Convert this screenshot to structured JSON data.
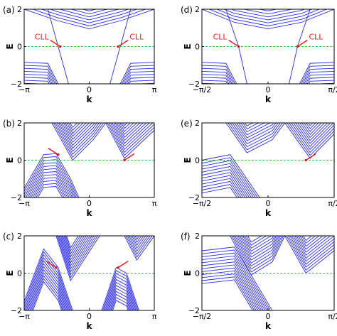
{
  "figure": {
    "colors": {
      "bands": "#2b2be6",
      "fermi_line": "#2ecc2e",
      "annotation": "#e02020"
    }
  },
  "chart_data": [
    {
      "panel": "(a)",
      "type": "line",
      "xlabel": "k",
      "ylabel": "E",
      "xlim": [
        -3.1416,
        3.1416
      ],
      "ylim": [
        -2,
        2
      ],
      "xticks": [
        "−π",
        "0",
        "π"
      ],
      "yticks": [
        "−2",
        "0",
        "2"
      ],
      "annotations": [
        {
          "text": "CLL",
          "k": -1.4,
          "E": 0
        },
        {
          "text": "CLL",
          "k": 1.4,
          "E": 0
        }
      ],
      "series": [
        {
          "role": "conduction band bottom",
          "x": [
            -3.14,
            -1.57,
            0,
            1.57,
            3.14
          ],
          "y": [
            2.0,
            1.4,
            0.95,
            1.4,
            2.0
          ]
        },
        {
          "role": "valence band top",
          "x": [
            -3.14,
            -2.0,
            -1.5
          ],
          "y": [
            -0.85,
            -0.9,
            -2.0
          ]
        },
        {
          "role": "valence band top",
          "x": [
            1.5,
            2.0,
            3.14
          ],
          "y": [
            -2.0,
            -0.9,
            -0.85
          ]
        },
        {
          "role": "chiral Landau level",
          "x": [
            -2.0,
            -1.5,
            -1.0
          ],
          "y": [
            2.0,
            0,
            -2.0
          ]
        },
        {
          "role": "chiral Landau level",
          "x": [
            1.0,
            1.5,
            2.0
          ],
          "y": [
            -2.0,
            0,
            2.0
          ]
        }
      ]
    },
    {
      "panel": "(d)",
      "type": "line",
      "xlabel": "k",
      "ylabel": "E",
      "xlim": [
        -1.5708,
        1.5708
      ],
      "ylim": [
        -2,
        2
      ],
      "xticks": [
        "−π/2",
        "0",
        "π/2"
      ],
      "yticks": [
        "−2",
        "0",
        "2"
      ],
      "annotations": [
        {
          "text": "CLL",
          "k": -0.7,
          "E": 0
        },
        {
          "text": "CLL",
          "k": 0.7,
          "E": 0
        }
      ],
      "series": [
        {
          "role": "conduction band bottom",
          "x": [
            -1.57,
            -0.8,
            0,
            0.8,
            1.57
          ],
          "y": [
            2.0,
            1.3,
            0.95,
            1.3,
            2.0
          ]
        },
        {
          "role": "valence band top",
          "x": [
            -1.57,
            -1.0,
            -0.75
          ],
          "y": [
            -0.85,
            -0.9,
            -2.0
          ]
        },
        {
          "role": "valence band top",
          "x": [
            0.75,
            1.0,
            1.57
          ],
          "y": [
            -2.0,
            -0.9,
            -0.85
          ]
        },
        {
          "role": "chiral Landau level",
          "x": [
            -1.0,
            -0.7,
            -0.5
          ],
          "y": [
            2.0,
            0,
            -2.0
          ]
        },
        {
          "role": "chiral Landau level",
          "x": [
            0.5,
            0.7,
            1.0
          ],
          "y": [
            -2.0,
            0,
            2.0
          ]
        }
      ]
    },
    {
      "panel": "(b)",
      "type": "line",
      "xlabel": "k",
      "ylabel": "E",
      "xlim": [
        -3.1416,
        3.1416
      ],
      "ylim": [
        -2,
        2
      ],
      "xticks": [
        "−π",
        "0",
        "π"
      ],
      "yticks": [
        "−2",
        "0",
        "2"
      ],
      "annotations": [
        {
          "text": "",
          "k": -1.5,
          "E": 0.3
        },
        {
          "text": "",
          "k": 1.7,
          "E": 0
        }
      ],
      "series": [
        {
          "role": "valence band top",
          "x": [
            -3.14,
            -2.2,
            -1.6,
            -0.9,
            -0.5
          ],
          "y": [
            -1.5,
            0.3,
            0.35,
            -1.0,
            -2.0
          ]
        },
        {
          "role": "conduction band bottom",
          "x": [
            -1.8,
            -0.8,
            0.2,
            0.8
          ],
          "y": [
            2.0,
            0.0,
            1.1,
            2.0
          ]
        },
        {
          "role": "conduction band bottom",
          "x": [
            0.8,
            1.7,
            3.14
          ],
          "y": [
            2.0,
            0.1,
            1.6
          ]
        }
      ]
    },
    {
      "panel": "(e)",
      "type": "line",
      "xlabel": "k",
      "ylabel": "E",
      "xlim": [
        -1.5708,
        1.5708
      ],
      "ylim": [
        -2,
        2
      ],
      "xticks": [
        "−π/2",
        "0",
        "π/2"
      ],
      "yticks": [
        "−2",
        "0",
        "2"
      ],
      "annotations": [
        {
          "text": "",
          "k": 0.9,
          "E": 0
        }
      ],
      "series": [
        {
          "role": "valence band top",
          "x": [
            -1.57,
            -0.9,
            -0.2
          ],
          "y": [
            0.0,
            0.3,
            -2.0
          ]
        },
        {
          "role": "conduction band bottom",
          "x": [
            -1.0,
            -0.5,
            0.1,
            0.4
          ],
          "y": [
            2.0,
            0.4,
            1.1,
            2.0
          ]
        },
        {
          "role": "conduction band bottom",
          "x": [
            0.4,
            1.0,
            1.57
          ],
          "y": [
            2.0,
            0.1,
            1.4
          ]
        }
      ]
    },
    {
      "panel": "(c)",
      "type": "line",
      "xlabel": "k",
      "ylabel": "E",
      "xlim": [
        -3.1416,
        3.1416
      ],
      "ylim": [
        -2,
        2
      ],
      "xticks": [
        "−π",
        "0",
        "π"
      ],
      "yticks": [
        "−2",
        "0",
        "2"
      ],
      "annotations": [
        {
          "text": "",
          "k": -1.6,
          "E": 0.3
        },
        {
          "text": "",
          "k": 1.4,
          "E": 0.3
        }
      ],
      "series": [
        {
          "role": "valence band top",
          "x": [
            -3.14,
            -2.2,
            -1.5,
            -0.8
          ],
          "y": [
            -1.5,
            1.3,
            0.3,
            -2.0
          ]
        },
        {
          "role": "conduction band bottom",
          "x": [
            -1.6,
            -0.9,
            -0.2,
            0.5
          ],
          "y": [
            2.0,
            -0.4,
            0.8,
            2.0
          ]
        },
        {
          "role": "valence band top",
          "x": [
            0.6,
            1.3,
            1.8,
            2.4
          ],
          "y": [
            -2.0,
            0.3,
            0.0,
            -2.0
          ]
        },
        {
          "role": "conduction band bottom",
          "x": [
            1.7,
            2.3,
            3.14
          ],
          "y": [
            2.0,
            0.7,
            2.0
          ]
        }
      ]
    },
    {
      "panel": "(f)",
      "type": "line",
      "xlabel": "k",
      "ylabel": "E",
      "xlim": [
        -1.5708,
        1.5708
      ],
      "ylim": [
        -2,
        2
      ],
      "xticks": [
        "−π/2",
        "0",
        "π/2"
      ],
      "yticks": [
        "−2",
        "0",
        "2"
      ],
      "annotations": [],
      "series": [
        {
          "role": "conduction band bottom",
          "x": [
            -0.9,
            -0.4,
            0.1,
            0.4
          ],
          "y": [
            2.0,
            -0.1,
            0.6,
            2.0
          ]
        },
        {
          "role": "conduction band bottom",
          "x": [
            0.4,
            0.9,
            1.57
          ],
          "y": [
            2.0,
            0.0,
            1.2
          ]
        },
        {
          "role": "valence band",
          "x": [
            -1.57,
            -0.8,
            0.1
          ],
          "y": [
            1.2,
            1.4,
            -2.0
          ]
        }
      ]
    }
  ]
}
